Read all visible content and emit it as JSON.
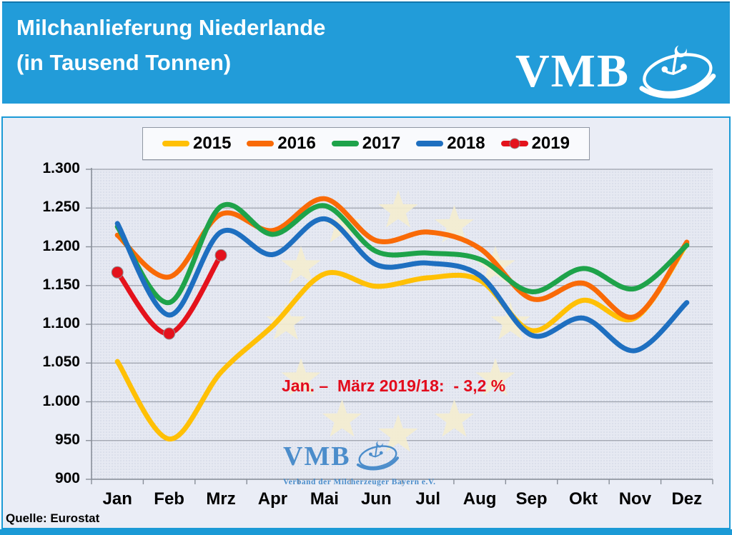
{
  "header": {
    "title_line1": "Milchanlieferung Niederlande",
    "title_line2": "(in Tausend Tonnen)",
    "logo_text": "VMB"
  },
  "watermark": {
    "logo_text": "VMB",
    "caption": "Verband der Milcherzeuger Bayern e.V."
  },
  "annotation": {
    "text": "Jan. –  März 2019/18:  - 3,2 %",
    "color": "#E30B1C"
  },
  "footer": {
    "source": "Quelle: Eurostat"
  },
  "colors": {
    "header_blue": "#229CD9",
    "frame_blue": "#1B9AD6",
    "panel_bg": "#EAEDF6",
    "plot_bg": "#E6E9F2",
    "plot_dot": "#CDD3E3",
    "grid": "#9CA1AB",
    "axis": "#898F99",
    "star": "#F4EDCF",
    "watermark_blue": "#3F86C8"
  },
  "chart_data": {
    "type": "line",
    "title": "Milchanlieferung Niederlande (in Tausend Tonnen)",
    "xlabel": "",
    "ylabel": "",
    "categories": [
      "Jan",
      "Feb",
      "Mrz",
      "Apr",
      "Mai",
      "Jun",
      "Jul",
      "Aug",
      "Sep",
      "Okt",
      "Nov",
      "Dez"
    ],
    "y_tick_labels": [
      "1.300",
      "1.250",
      "1.200",
      "1.150",
      "1.100",
      "1.050",
      "1.000",
      "950",
      "900"
    ],
    "ylim": [
      900,
      1300
    ],
    "y_step": 50,
    "grid": true,
    "legend_position": "top",
    "smooth": true,
    "series": [
      {
        "name": "2015",
        "color": "#FFC005",
        "markers": false,
        "values": [
          1052,
          952,
          1038,
          1098,
          1165,
          1149,
          1160,
          1157,
          1092,
          1131,
          1108,
          1204
        ]
      },
      {
        "name": "2016",
        "color": "#F96A07",
        "markers": false,
        "values": [
          1215,
          1161,
          1242,
          1221,
          1262,
          1208,
          1219,
          1198,
          1133,
          1153,
          1110,
          1206
        ]
      },
      {
        "name": "2017",
        "color": "#1EA34A",
        "markers": false,
        "values": [
          1226,
          1128,
          1252,
          1216,
          1253,
          1194,
          1192,
          1184,
          1142,
          1172,
          1146,
          1202
        ]
      },
      {
        "name": "2018",
        "color": "#1E6FC0",
        "markers": false,
        "values": [
          1230,
          1112,
          1219,
          1190,
          1236,
          1177,
          1179,
          1163,
          1086,
          1108,
          1066,
          1128
        ]
      },
      {
        "name": "2019",
        "color": "#E4121C",
        "markers": true,
        "values": [
          1167,
          1088,
          1189
        ]
      }
    ]
  }
}
